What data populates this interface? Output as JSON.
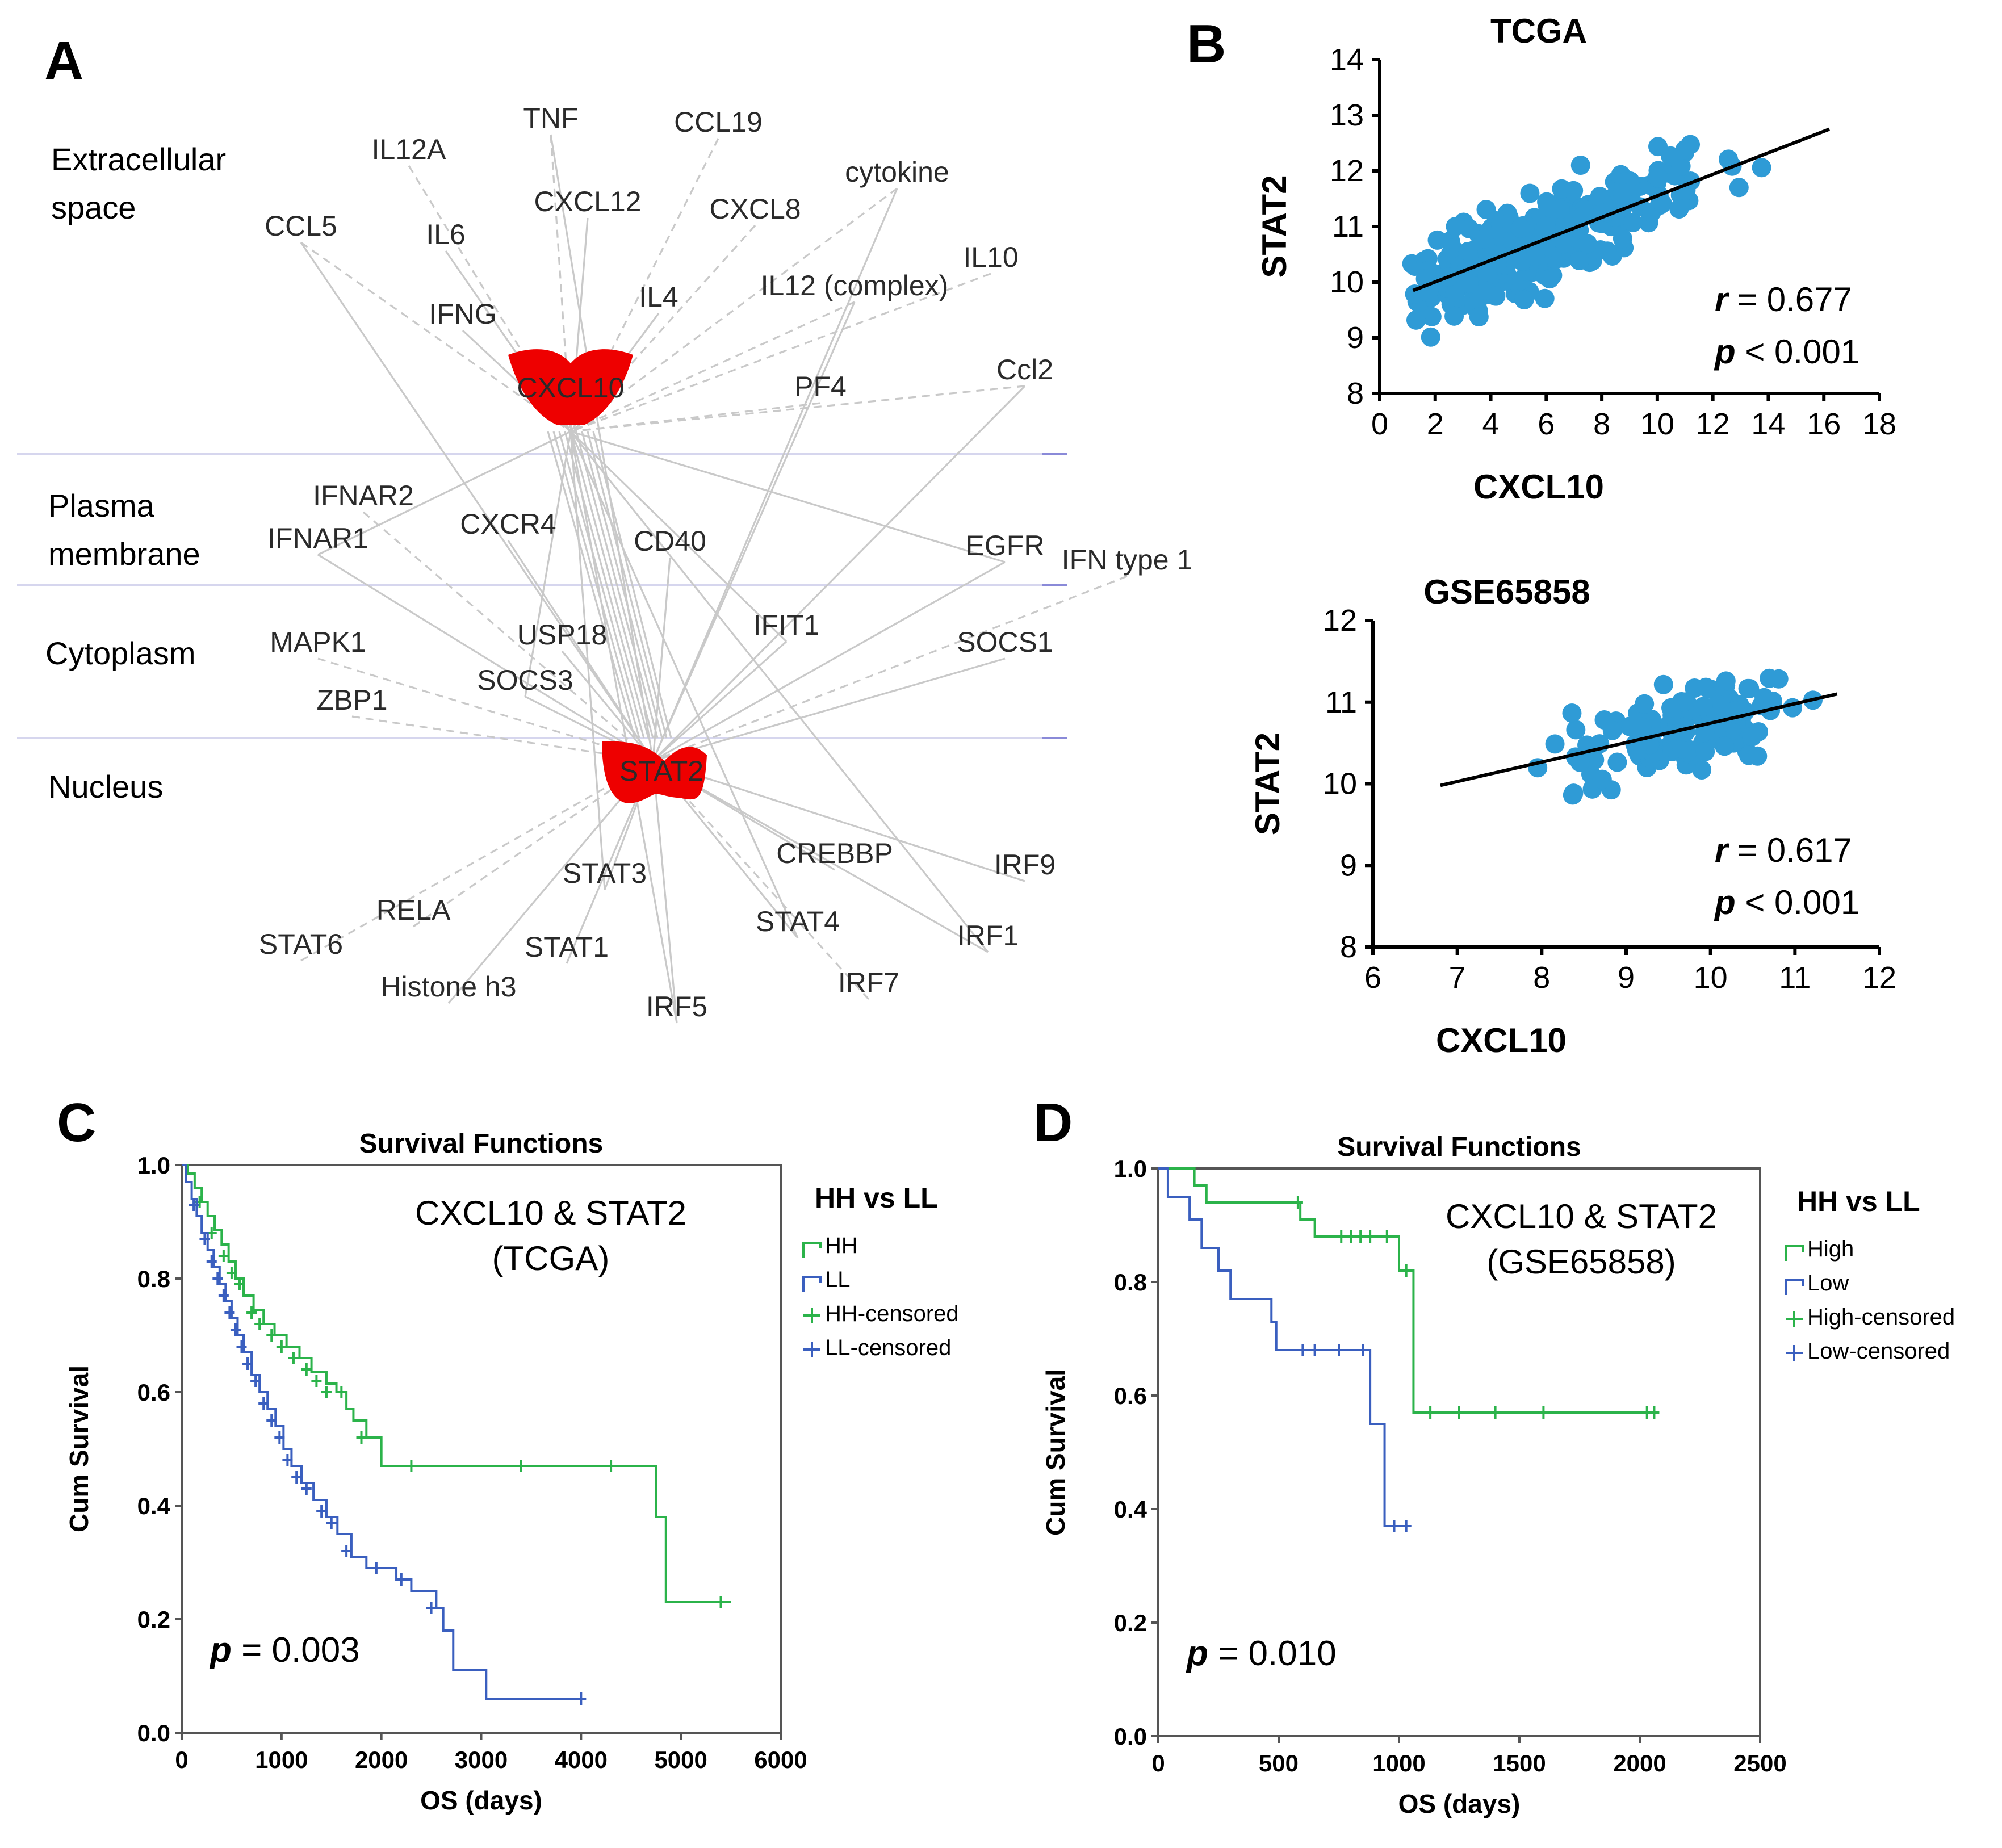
{
  "panels": {
    "a": {
      "letter": "A",
      "compartments": [
        "Extracellular\nspace",
        "Plasma\nmembrane",
        "Cytoplasm",
        "Nucleus"
      ],
      "hubs": [
        "CXCL10",
        "STAT2"
      ],
      "nodes": [
        "TNF",
        "CCL19",
        "IL12A",
        "cytokine",
        "CXCL12",
        "CXCL8",
        "CCL5",
        "IL6",
        "IL10",
        "IL12 (complex)",
        "IL4",
        "IFNG",
        "Ccl2",
        "PF4",
        "IFNAR2",
        "IFNAR1",
        "CXCR4",
        "CD40",
        "EGFR",
        "IFN type 1",
        "USP18",
        "IFIT1",
        "MAPK1",
        "SOCS1",
        "SOCS3",
        "ZBP1",
        "CREBBP",
        "STAT3",
        "IRF9",
        "RELA",
        "STAT4",
        "STAT6",
        "STAT1",
        "IRF1",
        "Histone h3",
        "IRF7",
        "IRF5"
      ],
      "colors": {
        "hub": "#ee0000",
        "edge": "#c9c9c9"
      }
    },
    "b": {
      "letter": "B"
    },
    "c": {
      "letter": "C"
    },
    "d": {
      "letter": "D"
    }
  },
  "chart_data": [
    {
      "id": "B-top",
      "type": "scatter",
      "title": "TCGA",
      "xlabel": "CXCL10",
      "ylabel": "STAT2",
      "xlim": [
        0,
        18
      ],
      "ylim": [
        8,
        14
      ],
      "xticks": [
        0,
        2,
        4,
        6,
        8,
        10,
        12,
        14,
        16,
        18
      ],
      "yticks": [
        8,
        9,
        10,
        11,
        12,
        13,
        14
      ],
      "regression": {
        "x": [
          1.2,
          16.2
        ],
        "y": [
          9.85,
          12.75
        ]
      },
      "annotations": [
        "r = 0.677",
        "p < 0.001"
      ],
      "point_color": "#2f9bd6",
      "n_points": 360,
      "point_generator": {
        "seed": 11,
        "x_range": [
          1.0,
          16.0
        ],
        "x_mode": 11.5,
        "slope": 0.193,
        "intercept": 9.62,
        "noise_sd": 0.55
      }
    },
    {
      "id": "B-bottom",
      "type": "scatter",
      "title": "GSE65858",
      "xlabel": "CXCL10",
      "ylabel": "STAT2",
      "xlim": [
        6,
        12
      ],
      "ylim": [
        8,
        12
      ],
      "xticks": [
        6,
        7,
        8,
        9,
        10,
        11,
        12
      ],
      "yticks": [
        8,
        9,
        10,
        11,
        12
      ],
      "regression": {
        "x": [
          6.8,
          11.5
        ],
        "y": [
          9.98,
          11.1
        ]
      },
      "annotations": [
        "r = 0.617",
        "p < 0.001"
      ],
      "point_color": "#2f9bd6",
      "n_points": 130,
      "point_generator": {
        "seed": 23,
        "x_range": [
          6.8,
          11.5
        ],
        "x_mode": 8.5,
        "slope": 0.238,
        "intercept": 8.36,
        "noise_sd": 0.38
      }
    },
    {
      "id": "C",
      "type": "line",
      "title": "Survival Functions",
      "xlabel": "OS (days)",
      "ylabel": "Cum Survival",
      "xlim": [
        0,
        6000
      ],
      "ylim": [
        0,
        1
      ],
      "xticks": [
        0,
        1000,
        2000,
        3000,
        4000,
        5000,
        6000
      ],
      "yticks": [
        0.0,
        0.2,
        0.4,
        0.6,
        0.8,
        1.0
      ],
      "annotation_lines": [
        "CXCL10 & STAT2",
        "(TCGA)"
      ],
      "p_text": "p = 0.003",
      "legend_title": "HH vs LL",
      "legend": [
        "HH",
        "LL",
        "HH-censored",
        "LL-censored"
      ],
      "series": [
        {
          "name": "HH",
          "color": "#2bb34a",
          "steps": [
            [
              0,
              1.0
            ],
            [
              60,
              0.985
            ],
            [
              130,
              0.96
            ],
            [
              200,
              0.935
            ],
            [
              260,
              0.91
            ],
            [
              330,
              0.885
            ],
            [
              400,
              0.86
            ],
            [
              470,
              0.83
            ],
            [
              540,
              0.8
            ],
            [
              620,
              0.77
            ],
            [
              720,
              0.745
            ],
            [
              820,
              0.72
            ],
            [
              930,
              0.7
            ],
            [
              1050,
              0.68
            ],
            [
              1180,
              0.66
            ],
            [
              1300,
              0.635
            ],
            [
              1450,
              0.615
            ],
            [
              1550,
              0.6
            ],
            [
              1650,
              0.57
            ],
            [
              1720,
              0.55
            ],
            [
              1850,
              0.52
            ],
            [
              2000,
              0.47
            ],
            [
              4750,
              0.38
            ],
            [
              4850,
              0.23
            ],
            [
              5500,
              0.23
            ]
          ],
          "censored": [
            [
              180,
              0.935
            ],
            [
              300,
              0.88
            ],
            [
              420,
              0.84
            ],
            [
              500,
              0.81
            ],
            [
              580,
              0.79
            ],
            [
              700,
              0.74
            ],
            [
              780,
              0.72
            ],
            [
              900,
              0.7
            ],
            [
              1000,
              0.68
            ],
            [
              1120,
              0.66
            ],
            [
              1250,
              0.64
            ],
            [
              1350,
              0.62
            ],
            [
              1450,
              0.6
            ],
            [
              1600,
              0.6
            ],
            [
              1800,
              0.52
            ],
            [
              2300,
              0.47
            ],
            [
              3400,
              0.47
            ],
            [
              4300,
              0.47
            ],
            [
              5400,
              0.23
            ]
          ]
        },
        {
          "name": "LL",
          "color": "#3a5fbf",
          "steps": [
            [
              0,
              1.0
            ],
            [
              40,
              0.97
            ],
            [
              100,
              0.94
            ],
            [
              150,
              0.91
            ],
            [
              200,
              0.88
            ],
            [
              260,
              0.85
            ],
            [
              320,
              0.82
            ],
            [
              380,
              0.79
            ],
            [
              440,
              0.76
            ],
            [
              500,
              0.73
            ],
            [
              560,
              0.7
            ],
            [
              620,
              0.67
            ],
            [
              700,
              0.63
            ],
            [
              780,
              0.6
            ],
            [
              860,
              0.57
            ],
            [
              940,
              0.54
            ],
            [
              1020,
              0.5
            ],
            [
              1100,
              0.47
            ],
            [
              1200,
              0.44
            ],
            [
              1320,
              0.41
            ],
            [
              1450,
              0.38
            ],
            [
              1560,
              0.35
            ],
            [
              1700,
              0.31
            ],
            [
              1850,
              0.29
            ],
            [
              2150,
              0.27
            ],
            [
              2300,
              0.25
            ],
            [
              2550,
              0.22
            ],
            [
              2620,
              0.18
            ],
            [
              2720,
              0.11
            ],
            [
              3050,
              0.06
            ],
            [
              4000,
              0.06
            ]
          ],
          "censored": [
            [
              120,
              0.93
            ],
            [
              230,
              0.87
            ],
            [
              300,
              0.83
            ],
            [
              360,
              0.8
            ],
            [
              420,
              0.77
            ],
            [
              480,
              0.74
            ],
            [
              540,
              0.71
            ],
            [
              600,
              0.68
            ],
            [
              660,
              0.65
            ],
            [
              740,
              0.62
            ],
            [
              820,
              0.58
            ],
            [
              900,
              0.55
            ],
            [
              980,
              0.52
            ],
            [
              1060,
              0.48
            ],
            [
              1150,
              0.45
            ],
            [
              1250,
              0.43
            ],
            [
              1400,
              0.39
            ],
            [
              1500,
              0.37
            ],
            [
              1650,
              0.32
            ],
            [
              1950,
              0.29
            ],
            [
              2200,
              0.27
            ],
            [
              2500,
              0.22
            ],
            [
              4000,
              0.06
            ]
          ]
        }
      ]
    },
    {
      "id": "D",
      "type": "line",
      "title": "Survival Functions",
      "xlabel": "OS (days)",
      "ylabel": "Cum Survival",
      "xlim": [
        0,
        2500
      ],
      "ylim": [
        0,
        1
      ],
      "xticks": [
        0,
        500,
        1000,
        1500,
        2000,
        2500
      ],
      "yticks": [
        0.0,
        0.2,
        0.4,
        0.6,
        0.8,
        1.0
      ],
      "annotation_lines": [
        "CXCL10 & STAT2",
        "(GSE65858)"
      ],
      "p_text": "p = 0.010",
      "legend_title": "HH vs LL",
      "legend": [
        "High",
        "Low",
        "High-censored",
        "Low-censored"
      ],
      "series": [
        {
          "name": "High",
          "color": "#2bb34a",
          "steps": [
            [
              0,
              1.0
            ],
            [
              150,
              0.97
            ],
            [
              200,
              0.94
            ],
            [
              590,
              0.91
            ],
            [
              650,
              0.88
            ],
            [
              1000,
              0.82
            ],
            [
              1060,
              0.57
            ],
            [
              2060,
              0.57
            ]
          ],
          "censored": [
            [
              580,
              0.94
            ],
            [
              760,
              0.88
            ],
            [
              800,
              0.88
            ],
            [
              840,
              0.88
            ],
            [
              880,
              0.88
            ],
            [
              950,
              0.88
            ],
            [
              1030,
              0.82
            ],
            [
              1130,
              0.57
            ],
            [
              1250,
              0.57
            ],
            [
              1400,
              0.57
            ],
            [
              1600,
              0.57
            ],
            [
              2030,
              0.57
            ],
            [
              2060,
              0.57
            ]
          ]
        },
        {
          "name": "Low",
          "color": "#3a5fbf",
          "steps": [
            [
              0,
              1.0
            ],
            [
              40,
              0.95
            ],
            [
              130,
              0.91
            ],
            [
              180,
              0.86
            ],
            [
              250,
              0.82
            ],
            [
              300,
              0.77
            ],
            [
              470,
              0.73
            ],
            [
              490,
              0.68
            ],
            [
              880,
              0.55
            ],
            [
              940,
              0.37
            ],
            [
              1030,
              0.37
            ]
          ],
          "censored": [
            [
              600,
              0.68
            ],
            [
              650,
              0.68
            ],
            [
              750,
              0.68
            ],
            [
              850,
              0.68
            ],
            [
              980,
              0.37
            ],
            [
              1030,
              0.37
            ]
          ]
        }
      ]
    }
  ]
}
